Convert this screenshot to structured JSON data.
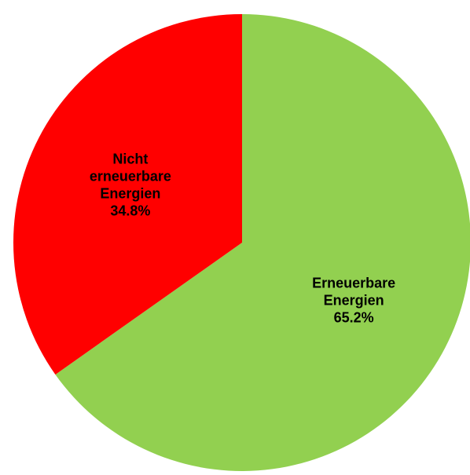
{
  "chart_data": {
    "type": "pie",
    "slices": [
      {
        "label_lines": [
          "Erneuerbare",
          "Energien"
        ],
        "percent_label": "65.2%",
        "value": 65.2,
        "color": "#92d050"
      },
      {
        "label_lines": [
          "Nicht",
          "erneuerbare",
          "Energien"
        ],
        "percent_label": "34.8%",
        "value": 34.8,
        "color": "#ff0000"
      }
    ],
    "start_angle_deg": 0,
    "direction": "clockwise"
  }
}
